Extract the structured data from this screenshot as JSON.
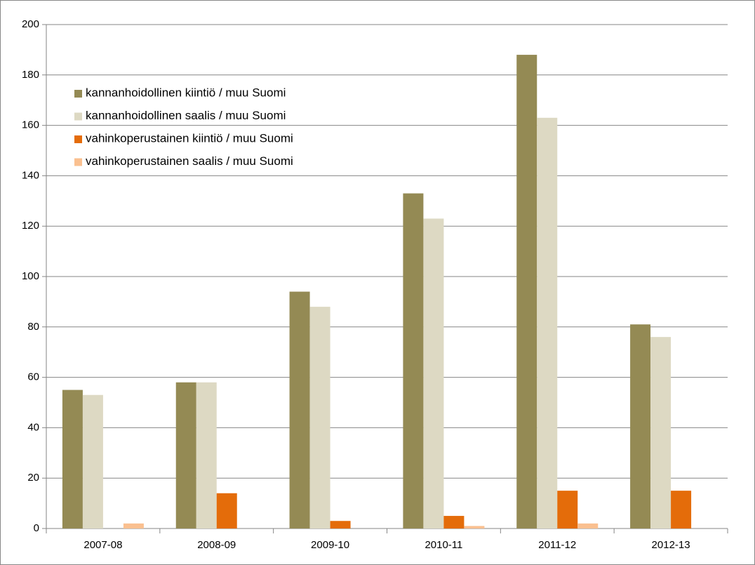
{
  "chart_data": {
    "type": "bar",
    "categories": [
      "2007-08",
      "2008-09",
      "2009-10",
      "2010-11",
      "2011-12",
      "2012-13"
    ],
    "series": [
      {
        "name": "kannanhoidollinen kiintiö / muu Suomi",
        "color": "#948a54",
        "values": [
          55,
          58,
          94,
          133,
          188,
          81
        ]
      },
      {
        "name": "kannanhoidollinen saalis / muu Suomi",
        "color": "#ddd9c3",
        "values": [
          53,
          58,
          88,
          123,
          163,
          76
        ]
      },
      {
        "name": "vahinkoperustainen kiintiö / muu Suomi",
        "color": "#e46c0a",
        "values": [
          0,
          14,
          3,
          5,
          15,
          15
        ]
      },
      {
        "name": "vahinkoperustainen saalis / muu Suomi",
        "color": "#fac090",
        "values": [
          2,
          0,
          0,
          1,
          2,
          0
        ]
      }
    ],
    "ylim": [
      0,
      200
    ],
    "yticks": [
      0,
      20,
      40,
      60,
      80,
      100,
      120,
      140,
      160,
      180,
      200
    ],
    "grid": true,
    "legend": "upper left"
  }
}
